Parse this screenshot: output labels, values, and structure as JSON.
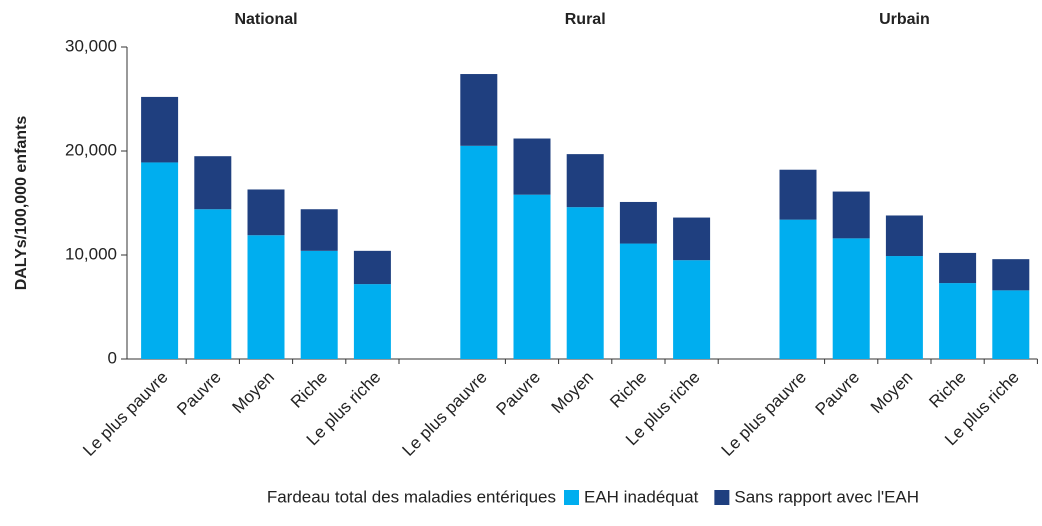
{
  "chart_data": {
    "type": "bar",
    "stacked": true,
    "ylabel": "DALYs/100,000 enfants",
    "legend_title": "Fardeau total des maladies entériques",
    "groups": [
      {
        "title": "National",
        "categories": [
          "Le plus pauvre",
          "Pauvre",
          "Moyen",
          "Riche",
          "Le plus riche"
        ]
      },
      {
        "title": "Rural",
        "categories": [
          "Le plus pauvre",
          "Pauvre",
          "Moyen",
          "Riche",
          "Le plus riche"
        ]
      },
      {
        "title": "Urbain",
        "categories": [
          "Le plus pauvre",
          "Pauvre",
          "Moyen",
          "Riche",
          "Le plus riche"
        ]
      }
    ],
    "series": [
      {
        "name": "EAH inadéquat",
        "color": "#00aeef",
        "values": [
          [
            18900,
            14400,
            11900,
            10400,
            7200
          ],
          [
            20500,
            15800,
            14600,
            11100,
            9500
          ],
          [
            13400,
            11600,
            9900,
            7300,
            6600
          ]
        ]
      },
      {
        "name": "Sans rapport avec l'EAH",
        "color": "#1f3f7f",
        "values": [
          [
            6300,
            5100,
            4400,
            4000,
            3200
          ],
          [
            6900,
            5400,
            5100,
            4000,
            4100
          ],
          [
            4800,
            4500,
            3900,
            2900,
            3000
          ]
        ]
      }
    ],
    "ylim": [
      0,
      30000
    ],
    "yticks": [
      0,
      {
        "value": 10000,
        "label": "10,000"
      },
      {
        "value": 20000,
        "label": "20,000"
      },
      {
        "value": 30000,
        "label": "30,000"
      }
    ]
  }
}
